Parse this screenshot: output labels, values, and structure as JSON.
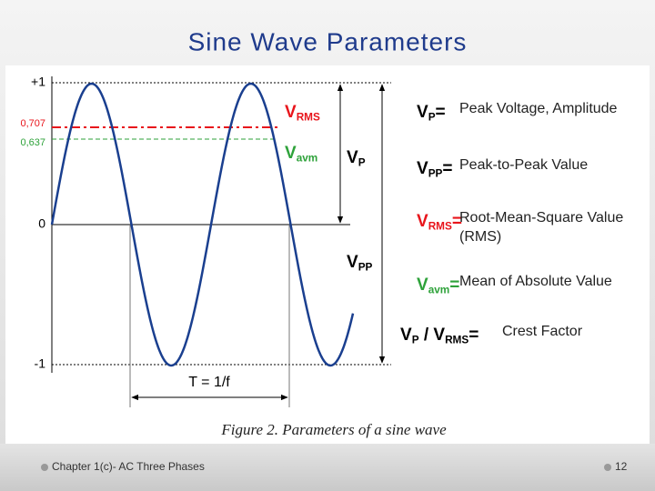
{
  "slide": {
    "title": "Sine Wave Parameters",
    "figure": {
      "axis_labels": [
        "+1",
        "0,707",
        "0,637",
        "0",
        "-1"
      ],
      "period_label": "T = 1/f",
      "vrms_label": [
        "V",
        "RMS"
      ],
      "vavm_label": [
        "V",
        "avm"
      ],
      "vp_label": [
        "V",
        "P"
      ],
      "vpp_label": [
        "V",
        "PP"
      ],
      "legend": [
        {
          "symbol": [
            "V",
            "P",
            "="
          ],
          "color": "#000000",
          "description": [
            "Peak Voltage, Amplitude"
          ]
        },
        {
          "symbol": [
            "V",
            "PP",
            "="
          ],
          "color": "#000000",
          "description": [
            "Peak-to-Peak Value"
          ]
        },
        {
          "symbol": [
            "V",
            "RMS",
            "="
          ],
          "color": "#e8141b",
          "description": [
            "Root-Mean-Square Value",
            "(RMS)"
          ]
        },
        {
          "symbol": [
            "V",
            "avm",
            "="
          ],
          "color": "#2ea23a",
          "description": [
            "Mean of Absolute Value"
          ]
        },
        {
          "symbol": [
            "V",
            "P",
            " / V",
            "RMS",
            "="
          ],
          "color": "#000000",
          "description": [
            "Crest Factor"
          ]
        }
      ],
      "caption": "Figure 2. Parameters of a sine wave"
    },
    "footer": {
      "text": "Chapter 1(c)- AC Three Phases",
      "page": "12"
    }
  }
}
